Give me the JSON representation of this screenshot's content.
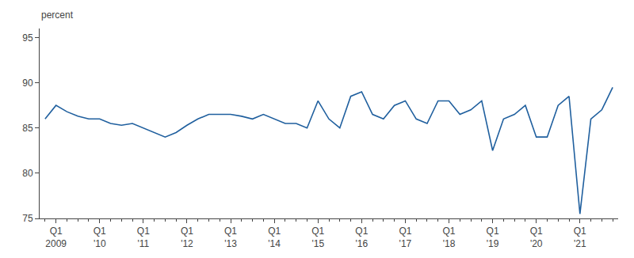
{
  "chart_data": {
    "type": "line",
    "ylabel": "percent",
    "categories": [
      null,
      "Q1\n2009",
      null,
      null,
      null,
      "Q1\n'10",
      null,
      null,
      null,
      "Q1\n'11",
      null,
      null,
      null,
      "Q1\n'12",
      null,
      null,
      null,
      "Q1\n'13",
      null,
      null,
      null,
      "Q1\n'14",
      null,
      null,
      null,
      "Q1\n'15",
      null,
      null,
      null,
      "Q1\n'16",
      null,
      null,
      null,
      "Q1\n'17",
      null,
      null,
      null,
      "Q1\n'18",
      null,
      null,
      null,
      "Q1\n'19",
      null,
      null,
      null,
      "Q1\n'20",
      null,
      null,
      null,
      "Q1\n'21",
      null,
      null,
      null
    ],
    "values": [
      86.0,
      87.5,
      86.8,
      86.3,
      86.0,
      86.0,
      85.5,
      85.3,
      85.5,
      85.0,
      84.5,
      84.0,
      84.5,
      85.3,
      86.0,
      86.5,
      86.5,
      86.5,
      86.3,
      86.0,
      86.5,
      86.0,
      85.5,
      85.5,
      85.0,
      88.0,
      86.0,
      85.0,
      88.5,
      89.0,
      86.5,
      86.0,
      87.5,
      88.0,
      86.0,
      85.5,
      88.0,
      88.0,
      86.5,
      87.0,
      88.0,
      82.5,
      86.0,
      86.5,
      87.5,
      84.0,
      84.0,
      87.5,
      88.5,
      75.5,
      86.0,
      87.0,
      89.5
    ],
    "color": "#1f5f9e",
    "ylim": [
      75,
      96
    ],
    "yticks": [
      75,
      80,
      85,
      90,
      95
    ],
    "grid": false
  }
}
